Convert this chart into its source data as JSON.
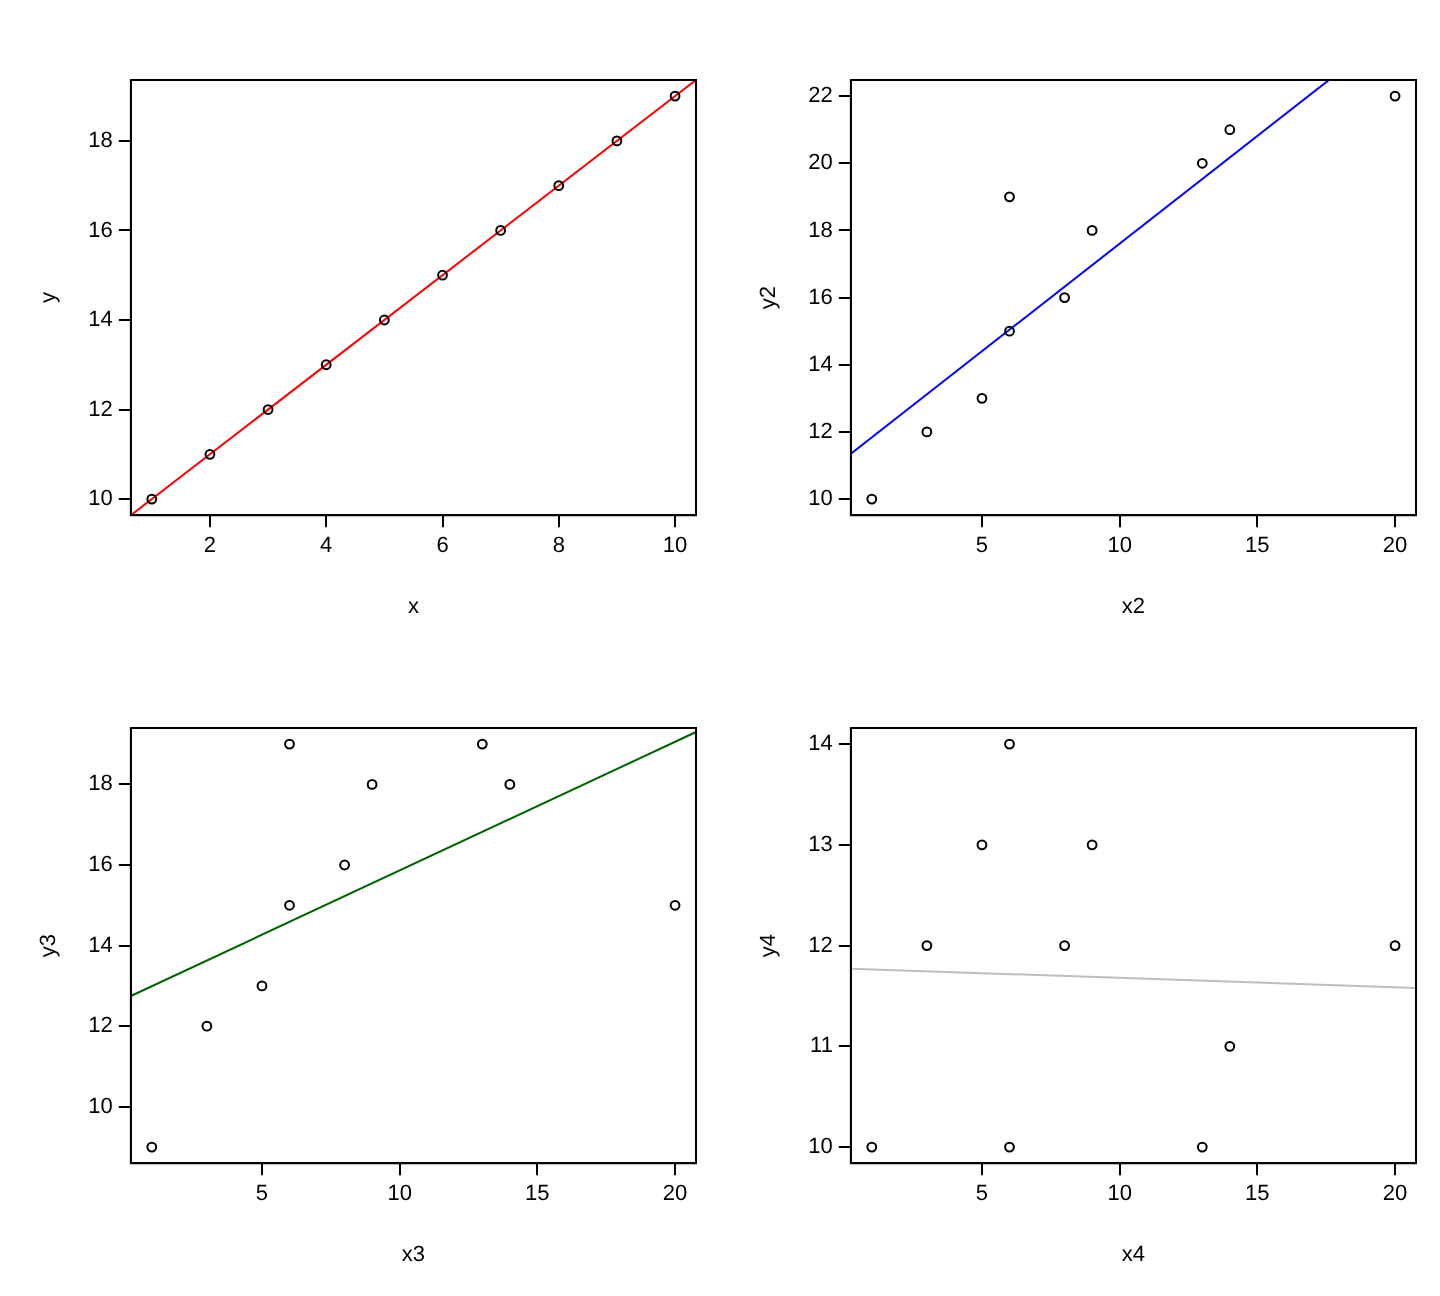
{
  "chart_data": [
    {
      "type": "scatter",
      "xlabel": "x",
      "ylabel": "y",
      "xlim": [
        0.64,
        10.36
      ],
      "ylim": [
        9.64,
        19.36
      ],
      "xticks": [
        2,
        4,
        6,
        8,
        10
      ],
      "yticks": [
        10,
        12,
        14,
        16,
        18
      ],
      "grid": false,
      "legend": false,
      "series": [
        {
          "marker": "circle",
          "color": "#000000",
          "x": [
            1,
            2,
            3,
            4,
            5,
            6,
            7,
            8,
            9,
            10
          ],
          "values": [
            10,
            11,
            12,
            13,
            14,
            15,
            16,
            17,
            18,
            19
          ]
        },
        {
          "type": "line",
          "color": "#ff0000",
          "x": [
            0.64,
            10.36
          ],
          "values": [
            9.64,
            19.36
          ]
        }
      ]
    },
    {
      "type": "scatter",
      "xlabel": "x2",
      "ylabel": "y2",
      "xlim": [
        0.24,
        20.76
      ],
      "ylim": [
        9.52,
        22.48
      ],
      "xticks": [
        5,
        10,
        15,
        20
      ],
      "yticks": [
        10,
        12,
        14,
        16,
        18,
        20,
        22
      ],
      "grid": false,
      "legend": false,
      "series": [
        {
          "marker": "circle",
          "color": "#000000",
          "x": [
            1,
            3,
            5,
            6,
            6,
            8,
            9,
            13,
            14,
            20
          ],
          "values": [
            10,
            12,
            13,
            15,
            19,
            16,
            18,
            20,
            21,
            22
          ]
        },
        {
          "type": "line",
          "color": "#0000ff",
          "x": [
            0.24,
            17.6
          ],
          "values": [
            11.35,
            22.48
          ]
        }
      ]
    },
    {
      "type": "scatter",
      "xlabel": "x3",
      "ylabel": "y3",
      "xlim": [
        0.24,
        20.76
      ],
      "ylim": [
        8.6,
        19.4
      ],
      "xticks": [
        5,
        10,
        15,
        20
      ],
      "yticks": [
        10,
        12,
        14,
        16,
        18
      ],
      "grid": false,
      "legend": false,
      "series": [
        {
          "marker": "circle",
          "color": "#000000",
          "x": [
            1,
            3,
            5,
            6,
            6,
            8,
            9,
            13,
            14,
            20
          ],
          "values": [
            9,
            12,
            13,
            15,
            19,
            16,
            18,
            19,
            18,
            15
          ]
        },
        {
          "type": "line",
          "color": "#006400",
          "x": [
            0.24,
            20.76
          ],
          "values": [
            12.75,
            19.3
          ]
        }
      ]
    },
    {
      "type": "scatter",
      "xlabel": "x4",
      "ylabel": "y4",
      "xlim": [
        0.24,
        20.76
      ],
      "ylim": [
        9.84,
        14.16
      ],
      "xticks": [
        5,
        10,
        15,
        20
      ],
      "yticks": [
        10,
        11,
        12,
        13,
        14
      ],
      "grid": false,
      "legend": false,
      "series": [
        {
          "marker": "circle",
          "color": "#000000",
          "x": [
            1,
            3,
            5,
            6,
            6,
            8,
            9,
            13,
            14,
            20
          ],
          "values": [
            10,
            12,
            13,
            14,
            10,
            12,
            13,
            10,
            11,
            12
          ]
        },
        {
          "type": "line",
          "color": "#bebebe",
          "x": [
            0.24,
            20.76
          ],
          "values": [
            11.77,
            11.58
          ]
        }
      ]
    }
  ]
}
